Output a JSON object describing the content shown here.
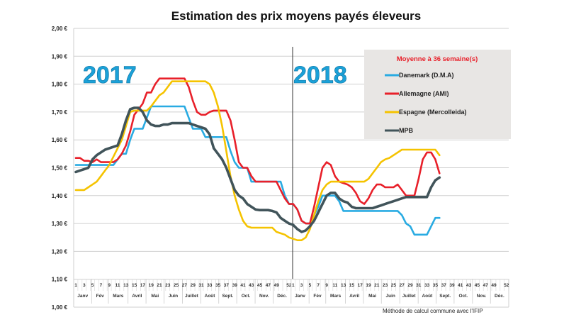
{
  "chart_data": {
    "type": "line",
    "title": "Estimation des prix moyens payés éleveurs",
    "ylim": [
      1.0,
      2.0
    ],
    "y_ticks": [
      "1,00 €",
      "1,10 €",
      "1,20 €",
      "1,30 €",
      "1,40 €",
      "1,50 €",
      "1,60 €",
      "1,70 €",
      "1,80 €",
      "1,90 €",
      "2,00 €"
    ],
    "grid": true,
    "legend_position": "top-right",
    "legend_title": "Moyenne à  36 semaine(s)",
    "year_labels": [
      "2017",
      "2018"
    ],
    "x_week_labels": [
      "1",
      "3",
      "5",
      "7",
      "9",
      "11",
      "13",
      "15",
      "17",
      "19",
      "21",
      "23",
      "25",
      "27",
      "29",
      "31",
      "33",
      "35",
      "37",
      "39",
      "41",
      "43",
      "45",
      "47",
      "49",
      "52"
    ],
    "x_month_labels": [
      "Janv",
      "Fév",
      "Mars",
      "Avril",
      "Mai",
      "Juin",
      "Juillet",
      "Août",
      "Sept.",
      "Oct.",
      "Nov.",
      "Déc."
    ],
    "x": "2017 semaines 1–52, puis 2018 semaines 1–36",
    "note": "Méthode de calcul commune avec l'IFIP",
    "series": [
      {
        "name": "Danemark (D.M.A)",
        "color": "#29abe2",
        "values": [
          1.51,
          1.51,
          1.51,
          1.51,
          1.51,
          1.51,
          1.51,
          1.51,
          1.51,
          1.51,
          1.53,
          1.55,
          1.55,
          1.6,
          1.64,
          1.64,
          1.64,
          1.68,
          1.72,
          1.72,
          1.72,
          1.72,
          1.72,
          1.72,
          1.72,
          1.72,
          1.72,
          1.68,
          1.64,
          1.64,
          1.64,
          1.61,
          1.61,
          1.61,
          1.61,
          1.61,
          1.61,
          1.56,
          1.52,
          1.5,
          1.5,
          1.5,
          1.45,
          1.45,
          1.45,
          1.45,
          1.45,
          1.45,
          1.45,
          1.45,
          1.4,
          1.37,
          1.37,
          1.35,
          1.31,
          1.3,
          1.3,
          1.33,
          1.36,
          1.4,
          1.4,
          1.4,
          1.4,
          1.38,
          1.345,
          1.345,
          1.345,
          1.345,
          1.345,
          1.345,
          1.345,
          1.345,
          1.345,
          1.345,
          1.345,
          1.345,
          1.345,
          1.345,
          1.33,
          1.3,
          1.29,
          1.26,
          1.26,
          1.26,
          1.26,
          1.29,
          1.32,
          1.32
        ]
      },
      {
        "name": "Allemagne (AMI)",
        "color": "#e8202a",
        "values": [
          1.535,
          1.535,
          1.525,
          1.525,
          1.52,
          1.53,
          1.52,
          1.52,
          1.52,
          1.52,
          1.53,
          1.55,
          1.58,
          1.63,
          1.69,
          1.71,
          1.73,
          1.77,
          1.77,
          1.8,
          1.82,
          1.82,
          1.82,
          1.82,
          1.82,
          1.82,
          1.82,
          1.79,
          1.74,
          1.7,
          1.69,
          1.69,
          1.7,
          1.705,
          1.705,
          1.705,
          1.705,
          1.67,
          1.6,
          1.52,
          1.5,
          1.5,
          1.47,
          1.45,
          1.45,
          1.45,
          1.45,
          1.45,
          1.45,
          1.42,
          1.39,
          1.37,
          1.37,
          1.35,
          1.31,
          1.3,
          1.3,
          1.36,
          1.43,
          1.5,
          1.52,
          1.51,
          1.47,
          1.45,
          1.445,
          1.44,
          1.43,
          1.41,
          1.38,
          1.37,
          1.39,
          1.42,
          1.44,
          1.44,
          1.43,
          1.43,
          1.43,
          1.44,
          1.42,
          1.4,
          1.4,
          1.4,
          1.46,
          1.53,
          1.555,
          1.555,
          1.53,
          1.48
        ]
      },
      {
        "name": "Espagne (Mercolleida)",
        "color": "#f5c300",
        "values": [
          1.42,
          1.42,
          1.42,
          1.43,
          1.44,
          1.45,
          1.47,
          1.49,
          1.51,
          1.54,
          1.57,
          1.6,
          1.65,
          1.7,
          1.705,
          1.705,
          1.705,
          1.705,
          1.72,
          1.74,
          1.76,
          1.77,
          1.79,
          1.81,
          1.81,
          1.81,
          1.81,
          1.81,
          1.81,
          1.81,
          1.81,
          1.81,
          1.8,
          1.77,
          1.72,
          1.65,
          1.56,
          1.47,
          1.4,
          1.35,
          1.31,
          1.29,
          1.285,
          1.285,
          1.285,
          1.285,
          1.285,
          1.285,
          1.27,
          1.265,
          1.26,
          1.25,
          1.245,
          1.24,
          1.24,
          1.25,
          1.28,
          1.33,
          1.38,
          1.42,
          1.44,
          1.45,
          1.45,
          1.45,
          1.45,
          1.45,
          1.45,
          1.45,
          1.45,
          1.45,
          1.46,
          1.48,
          1.5,
          1.52,
          1.53,
          1.535,
          1.545,
          1.555,
          1.565,
          1.565,
          1.565,
          1.565,
          1.565,
          1.565,
          1.565,
          1.565,
          1.565,
          1.545
        ]
      },
      {
        "name": "MPB",
        "color": "#41545a",
        "values": [
          1.485,
          1.49,
          1.495,
          1.5,
          1.53,
          1.545,
          1.555,
          1.565,
          1.57,
          1.575,
          1.58,
          1.62,
          1.67,
          1.71,
          1.715,
          1.715,
          1.7,
          1.67,
          1.655,
          1.65,
          1.65,
          1.655,
          1.655,
          1.66,
          1.66,
          1.66,
          1.66,
          1.66,
          1.655,
          1.65,
          1.645,
          1.64,
          1.62,
          1.57,
          1.55,
          1.53,
          1.5,
          1.46,
          1.42,
          1.4,
          1.39,
          1.37,
          1.36,
          1.35,
          1.348,
          1.348,
          1.348,
          1.345,
          1.34,
          1.32,
          1.31,
          1.3,
          1.295,
          1.28,
          1.27,
          1.275,
          1.29,
          1.31,
          1.34,
          1.37,
          1.4,
          1.41,
          1.41,
          1.39,
          1.38,
          1.375,
          1.36,
          1.355,
          1.355,
          1.355,
          1.355,
          1.355,
          1.36,
          1.365,
          1.37,
          1.375,
          1.38,
          1.385,
          1.39,
          1.395,
          1.395,
          1.395,
          1.395,
          1.395,
          1.395,
          1.43,
          1.455,
          1.465
        ]
      }
    ]
  }
}
